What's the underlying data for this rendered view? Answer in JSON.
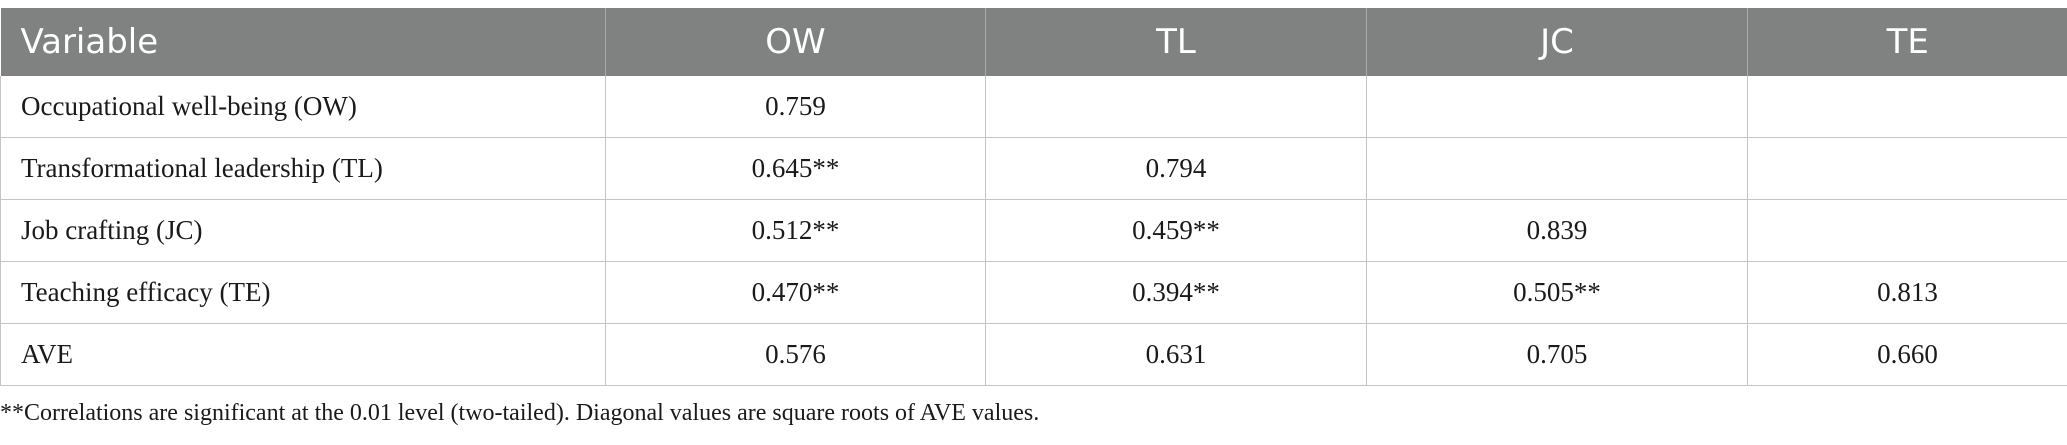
{
  "table": {
    "headers": [
      "Variable",
      "OW",
      "TL",
      "JC",
      "TE"
    ],
    "rows": [
      [
        "Occupational well-being (OW)",
        "0.759",
        "",
        "",
        ""
      ],
      [
        "Transformational leadership (TL)",
        "0.645**",
        "0.794",
        "",
        ""
      ],
      [
        "Job crafting (JC)",
        "0.512**",
        "0.459**",
        "0.839",
        ""
      ],
      [
        "Teaching efficacy (TE)",
        "0.470**",
        "0.394**",
        "0.505**",
        "0.813"
      ],
      [
        "AVE",
        "0.576",
        "0.631",
        "0.705",
        "0.660"
      ]
    ]
  },
  "footnote": "**Correlations are significant at the 0.01 level (two-tailed). Diagonal values are square roots of AVE values."
}
